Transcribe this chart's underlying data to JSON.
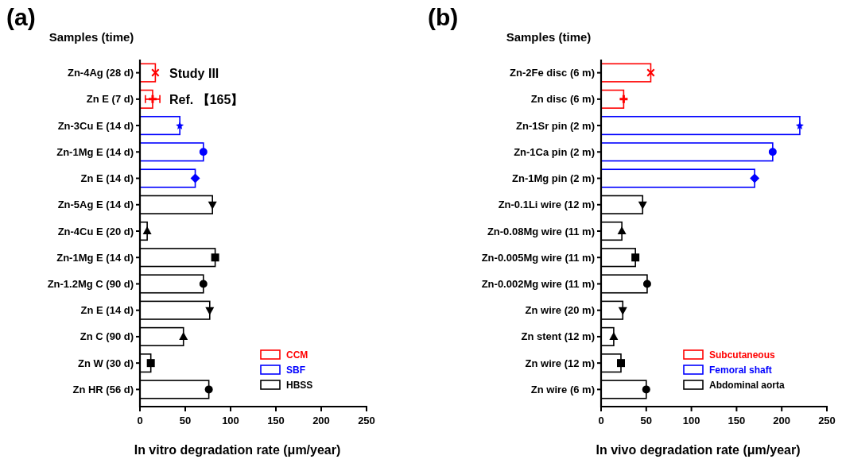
{
  "chart_data": [
    {
      "type": "bar",
      "orientation": "horizontal",
      "title": "(a)",
      "ylabel": "Samples (time)",
      "xlabel": "In vitro degradation rate (μm/year)",
      "categories": [
        "Zn-4Ag (28 d)",
        "Zn E (7 d)",
        "Zn-3Cu E (14 d)",
        "Zn-1Mg E (14 d)",
        "Zn E (14 d)",
        "Zn-5Ag E (14 d)",
        "Zn-4Cu E (20 d)",
        "Zn-1Mg E (14 d)",
        "Zn-1.2Mg C (90 d)",
        "Zn E (14 d)",
        "Zn C (90 d)",
        "Zn W (30 d)",
        "Zn HR (56 d)"
      ],
      "xlim": [
        0,
        250
      ],
      "xticks": [
        0,
        50,
        100,
        150,
        200,
        250
      ],
      "legend": "lower right",
      "grid": false,
      "annotations": [
        "Study III",
        "Ref. 【165】"
      ],
      "series": [
        {
          "name": "CCM",
          "color": "#ff0000",
          "values": [
            17,
            14,
            null,
            null,
            null,
            null,
            null,
            null,
            null,
            null,
            null,
            null,
            null
          ]
        },
        {
          "name": "SBF",
          "color": "#0000ff",
          "values": [
            null,
            null,
            44,
            70,
            61,
            null,
            null,
            null,
            null,
            null,
            null,
            null,
            null
          ]
        },
        {
          "name": "HBSS",
          "color": "#000000",
          "values": [
            null,
            null,
            null,
            null,
            null,
            80,
            8,
            83,
            70,
            77,
            48,
            12,
            76
          ]
        },
        {
          "type": "scatter",
          "marker": "cross",
          "color": "#ff0000",
          "values": [
            17,
            null,
            null,
            null,
            null,
            null,
            null,
            null,
            null,
            null,
            null,
            null,
            null
          ]
        },
        {
          "type": "scatter",
          "marker": "plus",
          "color": "#ff0000",
          "values": [
            null,
            14,
            null,
            null,
            null,
            null,
            null,
            null,
            null,
            null,
            null,
            null,
            null
          ],
          "errors": [
            null,
            8,
            null,
            null,
            null,
            null,
            null,
            null,
            null,
            null,
            null,
            null,
            null
          ]
        },
        {
          "type": "scatter",
          "marker": "star",
          "color": "#0000ff",
          "values": [
            null,
            null,
            44,
            null,
            null,
            null,
            null,
            null,
            null,
            null,
            null,
            null,
            null
          ]
        },
        {
          "type": "scatter",
          "marker": "circle",
          "colors": [
            null,
            null,
            null,
            "#0000ff",
            null,
            null,
            null,
            null,
            "#000000",
            null,
            null,
            null,
            "#000000"
          ],
          "values": [
            null,
            null,
            null,
            70,
            null,
            null,
            null,
            null,
            70,
            null,
            null,
            null,
            76
          ]
        },
        {
          "type": "scatter",
          "marker": "diamond",
          "color": "#0000ff",
          "values": [
            null,
            null,
            null,
            null,
            61,
            null,
            null,
            null,
            null,
            null,
            null,
            null,
            null
          ]
        },
        {
          "type": "scatter",
          "marker": "triangle_down",
          "color": "#000000",
          "values": [
            null,
            null,
            null,
            null,
            null,
            80,
            null,
            null,
            null,
            77,
            null,
            null,
            null
          ]
        },
        {
          "type": "scatter",
          "marker": "triangle",
          "color": "#000000",
          "values": [
            null,
            null,
            null,
            null,
            null,
            null,
            8,
            null,
            null,
            null,
            48,
            null,
            null
          ]
        },
        {
          "type": "scatter",
          "marker": "square",
          "color": "#000000",
          "values": [
            null,
            null,
            null,
            null,
            null,
            null,
            null,
            83,
            null,
            null,
            null,
            12,
            null
          ]
        }
      ]
    },
    {
      "type": "bar",
      "orientation": "horizontal",
      "title": "(b)",
      "ylabel": "Samples (time)",
      "xlabel": "In vivo degradation rate (μm/year)",
      "categories": [
        "Zn-2Fe disc (6 m)",
        "Zn disc (6 m)",
        "Zn-1Sr pin (2 m)",
        "Zn-1Ca pin (2 m)",
        "Zn-1Mg pin (2 m)",
        "Zn-0.1Li wire (12 m)",
        "Zn-0.08Mg wire (11 m)",
        "Zn-0.005Mg wire (11 m)",
        "Zn-0.002Mg wire (11 m)",
        "Zn wire (20 m)",
        "Zn stent (12 m)",
        "Zn wire (12 m)",
        "Zn wire (6 m)"
      ],
      "xlim": [
        0,
        250
      ],
      "xticks": [
        0,
        50,
        100,
        150,
        200,
        250
      ],
      "legend": "lower right",
      "grid": false,
      "series": [
        {
          "name": "Subcutaneous",
          "color": "#ff0000",
          "values": [
            55,
            25,
            null,
            null,
            null,
            null,
            null,
            null,
            null,
            null,
            null,
            null,
            null
          ]
        },
        {
          "name": "Femoral shaft",
          "color": "#0000ff",
          "values": [
            null,
            null,
            220,
            190,
            170,
            null,
            null,
            null,
            null,
            null,
            null,
            null,
            null
          ]
        },
        {
          "name": "Abdominal aorta",
          "color": "#000000",
          "values": [
            null,
            null,
            null,
            null,
            null,
            46,
            23,
            38,
            51,
            24,
            14,
            22,
            50
          ]
        },
        {
          "type": "scatter",
          "marker": "cross",
          "color": "#ff0000",
          "values": [
            55,
            null,
            null,
            null,
            null,
            null,
            null,
            null,
            null,
            null,
            null,
            null,
            null
          ]
        },
        {
          "type": "scatter",
          "marker": "plus",
          "color": "#ff0000",
          "values": [
            null,
            25,
            null,
            null,
            null,
            null,
            null,
            null,
            null,
            null,
            null,
            null,
            null
          ]
        },
        {
          "type": "scatter",
          "marker": "star",
          "color": "#0000ff",
          "values": [
            null,
            null,
            220,
            null,
            null,
            null,
            null,
            null,
            null,
            null,
            null,
            null,
            null
          ]
        },
        {
          "type": "scatter",
          "marker": "circle",
          "colors": [
            null,
            null,
            null,
            "#0000ff",
            null,
            null,
            null,
            null,
            "#000000",
            null,
            null,
            null,
            "#000000"
          ],
          "values": [
            null,
            null,
            null,
            190,
            null,
            null,
            null,
            null,
            51,
            null,
            null,
            null,
            50
          ]
        },
        {
          "type": "scatter",
          "marker": "diamond",
          "color": "#0000ff",
          "values": [
            null,
            null,
            null,
            null,
            170,
            null,
            null,
            null,
            null,
            null,
            null,
            null,
            null
          ]
        },
        {
          "type": "scatter",
          "marker": "triangle_down",
          "color": "#000000",
          "values": [
            null,
            null,
            null,
            null,
            null,
            46,
            null,
            null,
            null,
            24,
            null,
            null,
            null
          ]
        },
        {
          "type": "scatter",
          "marker": "triangle",
          "color": "#000000",
          "values": [
            null,
            null,
            null,
            null,
            null,
            null,
            23,
            null,
            null,
            null,
            14,
            null,
            null
          ]
        },
        {
          "type": "scatter",
          "marker": "square",
          "color": "#000000",
          "values": [
            null,
            null,
            null,
            null,
            null,
            null,
            null,
            38,
            null,
            null,
            null,
            22,
            null
          ]
        }
      ]
    }
  ]
}
